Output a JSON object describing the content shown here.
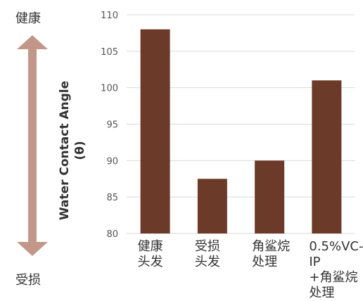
{
  "side_labels": {
    "top": "健康",
    "bottom": "受损"
  },
  "colors": {
    "bar": "#6b3a28",
    "arrow": "#c2978a",
    "grid": "#d9d9d9",
    "axis_text": "#555555"
  },
  "chart_data": {
    "type": "bar",
    "categories": [
      "健康\n头发",
      "受损\n头发",
      "角鲨烷\n处理",
      "0.5%VC-IP\n+角鲨烷\n处理"
    ],
    "values": [
      108,
      87.5,
      90,
      101
    ],
    "title": "",
    "xlabel": "",
    "ylabel": "Water Contact Angle",
    "ylabel_unit": "(θ)",
    "ylim": [
      80,
      110
    ],
    "yticks": [
      80,
      85,
      90,
      95,
      100,
      105,
      110
    ],
    "grid": true,
    "legend": "none"
  }
}
